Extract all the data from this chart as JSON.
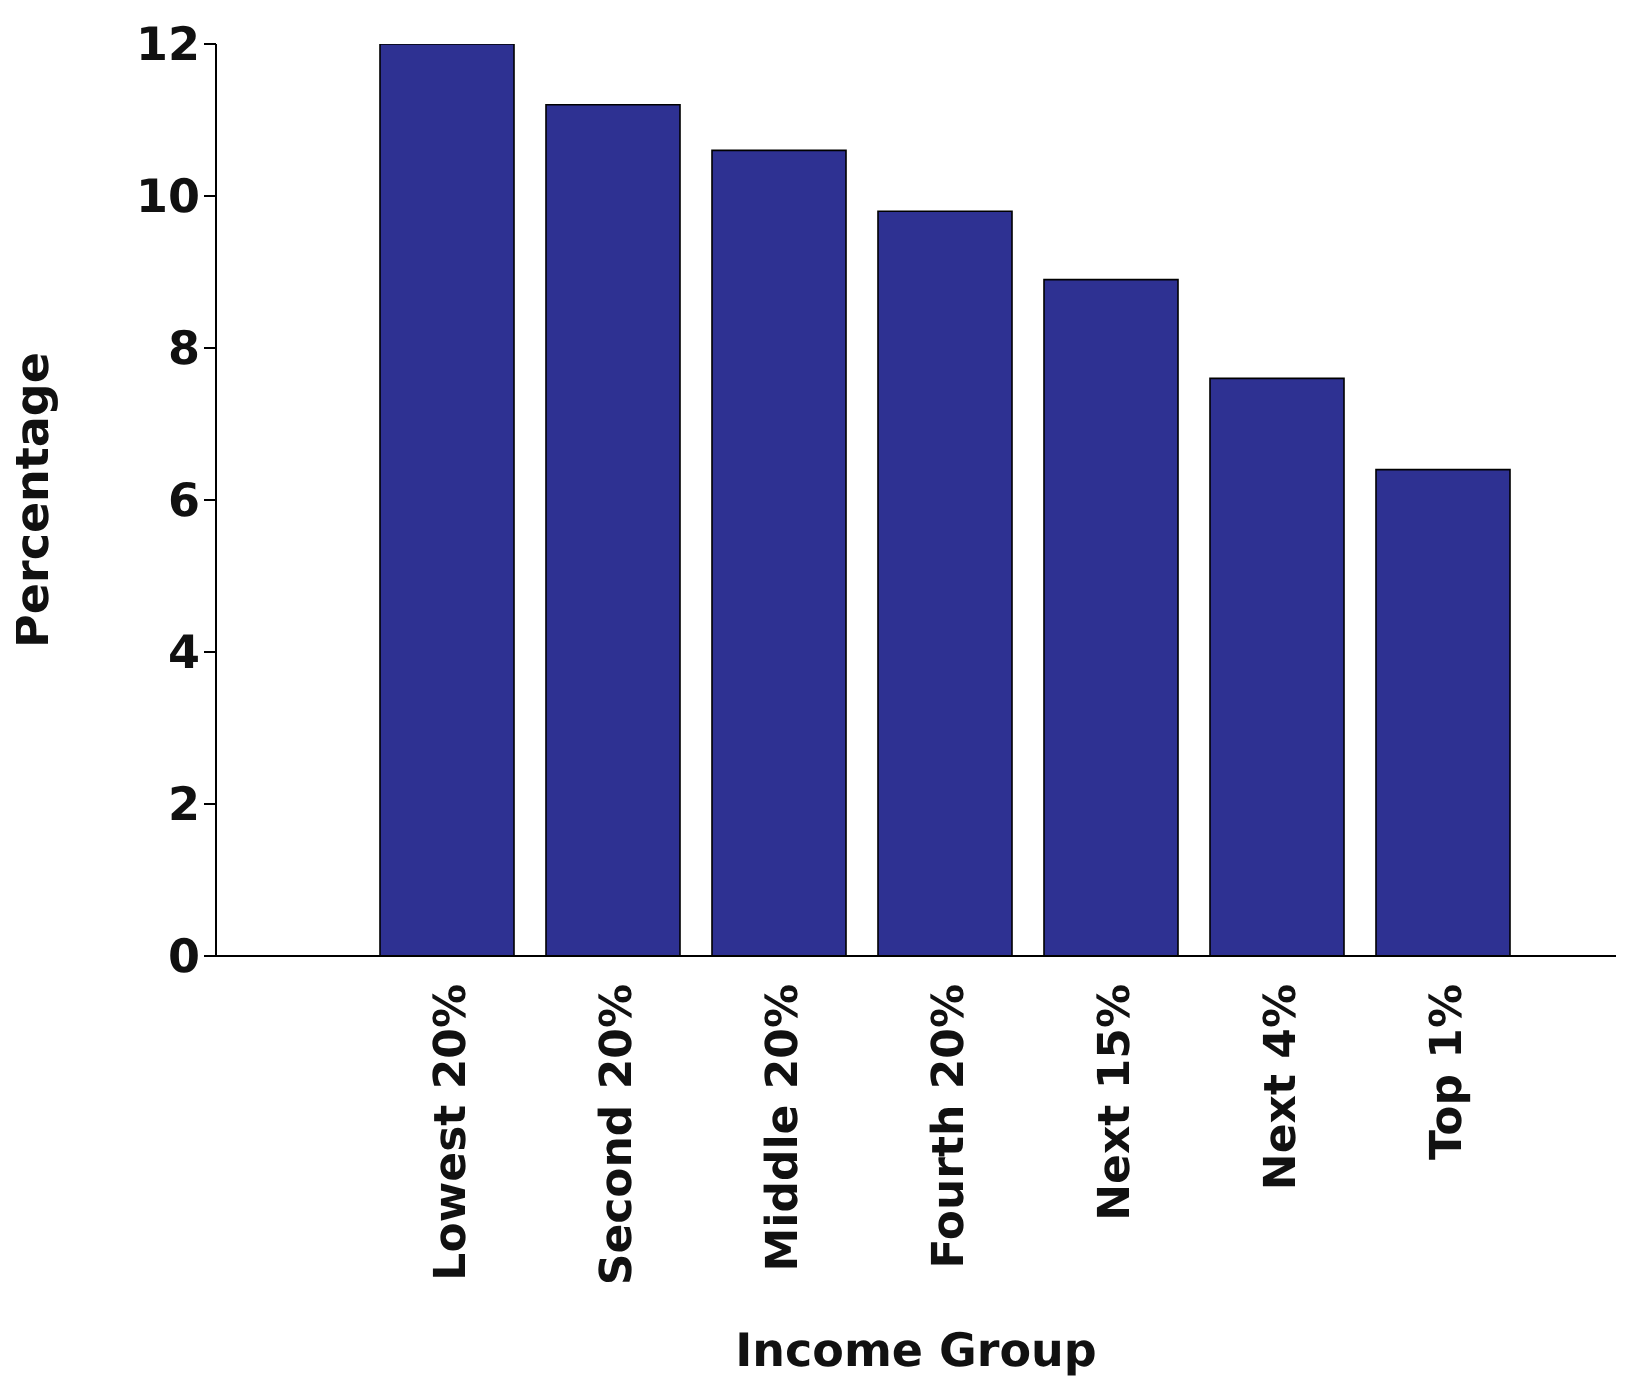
{
  "chart_data": {
    "type": "bar",
    "xlabel": "Income Group",
    "ylabel": "Percentage",
    "categories": [
      "Lowest 20%",
      "Second 20%",
      "Middle 20%",
      "Fourth 20%",
      "Next 15%",
      "Next 4%",
      "Top 1%"
    ],
    "values": [
      12,
      11.2,
      10.6,
      9.8,
      8.9,
      7.6,
      6.4
    ],
    "color": "#2e3192",
    "ylim": [
      0,
      12
    ],
    "yticks": [
      0,
      2,
      4,
      6,
      8,
      10,
      12
    ],
    "grid": false,
    "legend": false
  }
}
